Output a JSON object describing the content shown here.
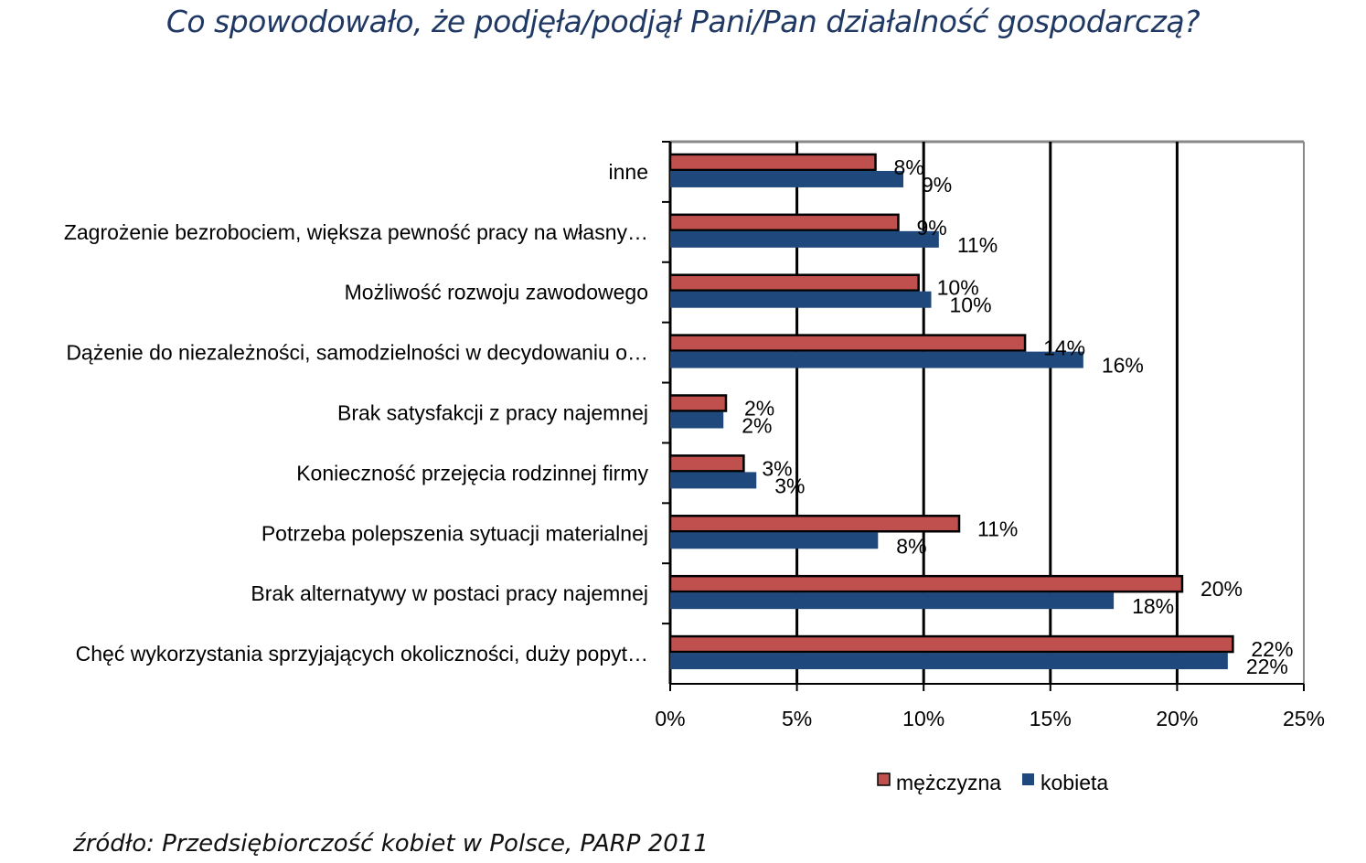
{
  "title": "Co spowodowało, że podjęła/podjął Pani/Pan działalność gospodarczą?",
  "source": "źródło: Przedsiębiorczość kobiet w Polsce, PARP 2011",
  "chart_data": {
    "type": "bar",
    "orientation": "horizontal",
    "title": "Co spowodowało, że podjęła/podjął Pani/Pan działalność gospodarczą?",
    "categories": [
      "inne",
      "Zagrożenie bezrobociem, większa pewność pracy na własny…",
      "Możliwość rozwoju zawodowego",
      "Dążenie do niezależności, samodzielności w decydowaniu o…",
      "Brak satysfakcji z pracy najemnej",
      "Konieczność przejęcia rodzinnej firmy",
      "Potrzeba polepszenia sytuacji materialnej",
      "Brak alternatywy w postaci pracy najemnej",
      "Chęć wykorzystania sprzyjających okoliczności, duży popyt…"
    ],
    "series": [
      {
        "name": "mężczyzna",
        "color": "#c0504d",
        "values": [
          8.1,
          9.0,
          9.8,
          14.0,
          2.2,
          2.9,
          11.4,
          20.2,
          22.2
        ],
        "labels": [
          "8%",
          "9%",
          "10%",
          "14%",
          "2%",
          "3%",
          "11%",
          "20%",
          "22%"
        ]
      },
      {
        "name": "kobieta",
        "color": "#1f497d",
        "values": [
          9.2,
          10.6,
          10.3,
          16.3,
          2.1,
          3.4,
          8.2,
          17.5,
          22.0
        ],
        "labels": [
          "9%",
          "11%",
          "10%",
          "16%",
          "2%",
          "3%",
          "8%",
          "18%",
          "22%"
        ]
      }
    ],
    "xlim": [
      0,
      25
    ],
    "xticks": [
      "0%",
      "5%",
      "10%",
      "15%",
      "20%",
      "25%"
    ],
    "grid": true,
    "legend": "bottom"
  }
}
